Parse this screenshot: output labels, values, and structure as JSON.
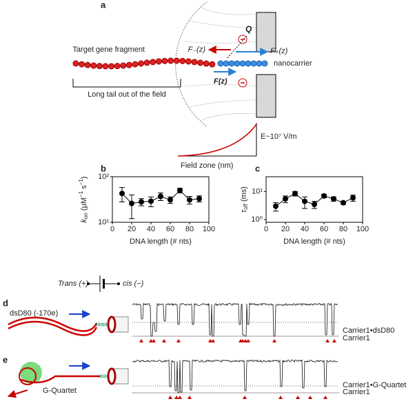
{
  "chart_data": [
    {
      "type": "line",
      "panel": "b",
      "y_label": [
        "k",
        "on",
        " (μM",
        "−1",
        " s",
        "−1",
        ")"
      ],
      "x_label": "DNA length (# nts)",
      "x": [
        10,
        20,
        30,
        40,
        50,
        60,
        70,
        80,
        90
      ],
      "values": [
        43,
        26,
        28,
        29,
        37,
        31,
        50,
        31,
        33
      ],
      "errors": [
        15,
        14,
        5,
        7,
        7,
        5,
        6,
        6,
        5
      ],
      "color": "#000000",
      "xlim": [
        0,
        100
      ],
      "xticks": [
        0,
        20,
        40,
        60,
        80,
        100
      ],
      "ylim": [
        10,
        100
      ],
      "log_y": true,
      "yticks": [
        {
          "value": 10,
          "label": "10¹"
        },
        {
          "value": 100,
          "label": "10²"
        }
      ]
    },
    {
      "type": "line",
      "panel": "c",
      "y_label": [
        "τ",
        "off",
        " (ms)"
      ],
      "x_label": "DNA length (# nts)",
      "x": [
        10,
        20,
        30,
        40,
        50,
        60,
        70,
        80,
        90
      ],
      "values": [
        3,
        5.5,
        8.5,
        4.5,
        3.5,
        7,
        5.5,
        4,
        6
      ],
      "errors": [
        1,
        1.5,
        1.5,
        2,
        1,
        1,
        1,
        0.5,
        1.5
      ],
      "color": "#000000",
      "xlim": [
        0,
        100
      ],
      "xticks": [
        0,
        20,
        40,
        60,
        80,
        100
      ],
      "ylim": [
        0.8,
        34
      ],
      "log_y": true,
      "yticks": [
        {
          "value": 1,
          "label": "10⁰"
        },
        {
          "value": 10,
          "label": "10¹"
        }
      ]
    }
  ],
  "figure": {
    "a": {
      "label": "a",
      "q": "Q",
      "target": "Target gene fragment",
      "f_minus": "F₋(z)",
      "f_plus": "F₊(z)",
      "carrier": "nanocarrier",
      "f": "F(z)",
      "tail": "Long tail out of the field",
      "field": "E~10⁷ V/m",
      "zone": "Field zone (nm)"
    },
    "battery": {
      "trans": "Trans (+)",
      "cis": "cis (−)"
    },
    "d": {
      "label": "d",
      "molecule": "dsD80 (-170e)",
      "level_1": "Carrier1•dsD80",
      "level_2": "Carrier1"
    },
    "e": {
      "label": "e",
      "molecule": "G-Quartet",
      "level_1": "Carrier1•G-Quartet",
      "level_2": "Carrier1"
    }
  }
}
